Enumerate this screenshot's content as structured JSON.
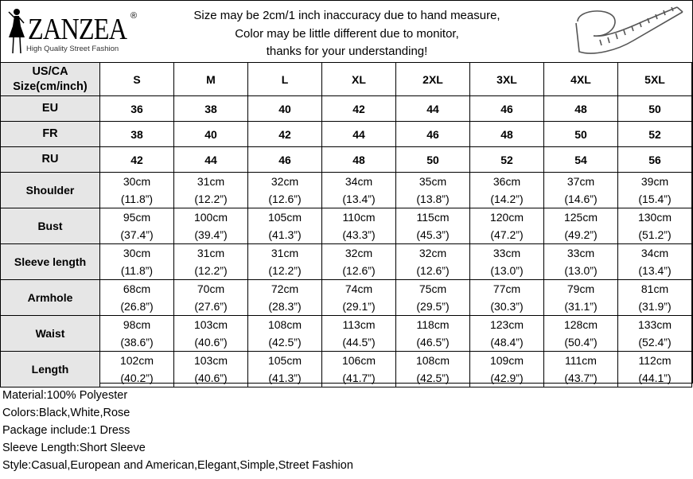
{
  "brand": {
    "name": "ZANZEA",
    "registered": "®",
    "tagline": "High Quality Street Fashion"
  },
  "notice": [
    "Size may be 2cm/1 inch inaccuracy due to hand measure,",
    "Color may be little different due to monitor,",
    "thanks for your understanding!"
  ],
  "icons": {
    "logo": "woman-silhouette-icon",
    "measure": "measuring-tape-icon"
  },
  "table": {
    "header_label": [
      "US/CA",
      "Size(cm/inch)"
    ],
    "sizes": [
      "S",
      "M",
      "L",
      "XL",
      "2XL",
      "3XL",
      "4XL",
      "5XL"
    ],
    "conversions": [
      {
        "label": "EU",
        "values": [
          "36",
          "38",
          "40",
          "42",
          "44",
          "46",
          "48",
          "50"
        ]
      },
      {
        "label": "FR",
        "values": [
          "38",
          "40",
          "42",
          "44",
          "46",
          "48",
          "50",
          "52"
        ]
      },
      {
        "label": "RU",
        "values": [
          "42",
          "44",
          "46",
          "48",
          "50",
          "52",
          "54",
          "56"
        ]
      }
    ],
    "measurements": [
      {
        "label": "Shoulder",
        "cm": [
          "30cm",
          "31cm",
          "32cm",
          "34cm",
          "35cm",
          "36cm",
          "37cm",
          "39cm"
        ],
        "inch": [
          "(11.8”)",
          "(12.2”)",
          "(12.6”)",
          "(13.4”)",
          "(13.8”)",
          "(14.2”)",
          "(14.6”)",
          "(15.4”)"
        ]
      },
      {
        "label": "Bust",
        "cm": [
          "95cm",
          "100cm",
          "105cm",
          "110cm",
          "115cm",
          "120cm",
          "125cm",
          "130cm"
        ],
        "inch": [
          "(37.4”)",
          "(39.4”)",
          "(41.3”)",
          "(43.3”)",
          "(45.3”)",
          "(47.2”)",
          "(49.2”)",
          "(51.2”)"
        ]
      },
      {
        "label": "Sleeve length",
        "cm": [
          "30cm",
          "31cm",
          "31cm",
          "32cm",
          "32cm",
          "33cm",
          "33cm",
          "34cm"
        ],
        "inch": [
          "(11.8”)",
          "(12.2”)",
          "(12.2”)",
          "(12.6”)",
          "(12.6”)",
          "(13.0”)",
          "(13.0”)",
          "(13.4”)"
        ]
      },
      {
        "label": "Armhole",
        "cm": [
          "68cm",
          "70cm",
          "72cm",
          "74cm",
          "75cm",
          "77cm",
          "79cm",
          "81cm"
        ],
        "inch": [
          "(26.8”)",
          "(27.6”)",
          "(28.3”)",
          "(29.1”)",
          "(29.5”)",
          "(30.3”)",
          "(31.1”)",
          "(31.9”)"
        ]
      },
      {
        "label": "Waist",
        "cm": [
          "98cm",
          "103cm",
          "108cm",
          "113cm",
          "118cm",
          "123cm",
          "128cm",
          "133cm"
        ],
        "inch": [
          "(38.6”)",
          "(40.6”)",
          "(42.5”)",
          "(44.5”)",
          "(46.5”)",
          "(48.4”)",
          "(50.4”)",
          "(52.4”)"
        ]
      },
      {
        "label": "Length",
        "cm": [
          "102cm",
          "103cm",
          "105cm",
          "106cm",
          "108cm",
          "109cm",
          "111cm",
          "112cm"
        ],
        "inch": [
          "(40.2”)",
          "(40.6”)",
          "(41.3”)",
          "(41.7”)",
          "(42.5”)",
          "(42.9”)",
          "(43.7”)",
          "(44.1”)"
        ]
      }
    ]
  },
  "details": [
    "Material:100% Polyester",
    "Colors:Black,White,Rose",
    "Package include:1 Dress",
    "Sleeve Length:Short Sleeve",
    "Style:Casual,European and American,Elegant,Simple,Street Fashion"
  ]
}
